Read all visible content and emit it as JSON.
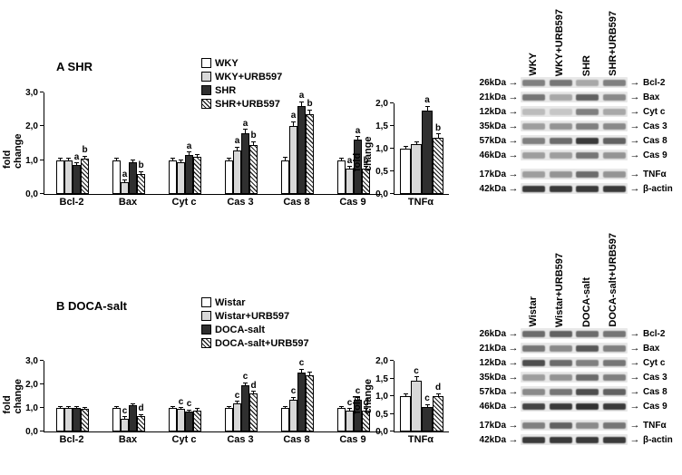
{
  "panels": [
    {
      "id": "A",
      "title": "A SHR",
      "legend": [
        "WKY",
        "WKY+URB597",
        "SHR",
        "SHR+URB597"
      ],
      "blot": {
        "lanes": [
          "WKY",
          "WKY+URB597",
          "SHR",
          "SHR+URB597"
        ],
        "rows": [
          {
            "kda": "26kDa",
            "protein": "Bcl-2",
            "bands": [
              0.5,
              0.55,
              0.3,
              0.5
            ]
          },
          {
            "kda": "21kDa",
            "protein": "Bax",
            "bands": [
              0.55,
              0.3,
              0.65,
              0.45
            ]
          },
          {
            "kda": "12kDa",
            "protein": "Cyt c",
            "bands": [
              0.2,
              0.15,
              0.5,
              0.3
            ]
          },
          {
            "kda": "35kDa",
            "protein": "Cas 3",
            "bands": [
              0.35,
              0.4,
              0.5,
              0.45
            ]
          },
          {
            "kda": "57kDa",
            "protein": "Cas 8",
            "bands": [
              0.5,
              0.6,
              0.85,
              0.65
            ]
          },
          {
            "kda": "46kDa",
            "protein": "Cas 9",
            "bands": [
              0.35,
              0.35,
              0.55,
              0.4
            ]
          },
          {
            "kda": "17kDa",
            "protein": "TNFα",
            "bands": [
              0.35,
              0.4,
              0.6,
              0.4
            ],
            "gap_before": true
          },
          {
            "kda": "42kDa",
            "protein": "β-actin",
            "bands": [
              0.85,
              0.85,
              0.85,
              0.85
            ]
          }
        ]
      }
    },
    {
      "id": "B",
      "title": "B DOCA-salt",
      "legend": [
        "Wistar",
        "Wistar+URB597",
        "DOCA-salt",
        "DOCA-salt+URB597"
      ],
      "blot": {
        "lanes": [
          "Wistar",
          "Wistar+URB597",
          "DOCA-salt",
          "DOCA-salt+URB597"
        ],
        "rows": [
          {
            "kda": "26kDa",
            "protein": "Bcl-2",
            "bands": [
              0.6,
              0.65,
              0.6,
              0.55
            ]
          },
          {
            "kda": "21kDa",
            "protein": "Bax",
            "bands": [
              0.55,
              0.45,
              0.7,
              0.5
            ]
          },
          {
            "kda": "12kDa",
            "protein": "Cyt c",
            "bands": [
              0.75,
              0.6,
              0.5,
              0.55
            ]
          },
          {
            "kda": "35kDa",
            "protein": "Cas 3",
            "bands": [
              0.35,
              0.4,
              0.6,
              0.5
            ]
          },
          {
            "kda": "57kDa",
            "protein": "Cas 8",
            "bands": [
              0.45,
              0.55,
              0.75,
              0.65
            ]
          },
          {
            "kda": "46kDa",
            "protein": "Cas 9",
            "bands": [
              0.8,
              0.85,
              0.9,
              0.85
            ]
          },
          {
            "kda": "17kDa",
            "protein": "TNFα",
            "bands": [
              0.5,
              0.65,
              0.45,
              0.55
            ],
            "gap_before": true
          },
          {
            "kda": "42kDa",
            "protein": "β-actin",
            "bands": [
              0.85,
              0.85,
              0.85,
              0.85
            ]
          }
        ]
      }
    }
  ],
  "chart_data": [
    {
      "id": "A-main",
      "type": "bar",
      "panel": "A",
      "title": "A SHR",
      "xlabel": "",
      "ylabel": "fold change",
      "ylim": [
        0,
        3
      ],
      "grid": false,
      "legend_position": "top-left-of-plot",
      "yticks": [
        {
          "v": 0,
          "label": "0,0"
        },
        {
          "v": 1,
          "label": "1,0"
        },
        {
          "v": 2,
          "label": "2,0"
        },
        {
          "v": 3,
          "label": "3,0"
        }
      ],
      "categories": [
        "Bcl-2",
        "Bax",
        "Cyt c",
        "Cas 3",
        "Cas 8",
        "Cas 9"
      ],
      "series": [
        {
          "name": "WKY",
          "style": 0,
          "values": [
            1.0,
            1.0,
            1.0,
            1.0,
            1.0,
            1.0
          ],
          "err": [
            0.05,
            0.05,
            0.05,
            0.05,
            0.08,
            0.05
          ],
          "sig": [
            null,
            null,
            null,
            null,
            null,
            null
          ]
        },
        {
          "name": "WKY+URB597",
          "style": 1,
          "values": [
            1.0,
            0.35,
            0.95,
            1.3,
            2.0,
            0.75
          ],
          "err": [
            0.05,
            0.05,
            0.05,
            0.08,
            0.12,
            0.05
          ],
          "sig": [
            null,
            "a",
            null,
            "a",
            "a",
            "a"
          ]
        },
        {
          "name": "SHR",
          "style": 2,
          "values": [
            0.85,
            0.95,
            1.15,
            1.8,
            2.6,
            1.6
          ],
          "err": [
            0.05,
            0.05,
            0.08,
            0.1,
            0.12,
            0.08
          ],
          "sig": [
            "a",
            null,
            "a",
            "a",
            "a",
            "a"
          ]
        },
        {
          "name": "SHR+URB597",
          "style": 3,
          "values": [
            1.05,
            0.6,
            1.1,
            1.45,
            2.35,
            0.75
          ],
          "err": [
            0.06,
            0.05,
            0.06,
            0.08,
            0.12,
            0.05
          ],
          "sig": [
            "b",
            "b",
            null,
            "b",
            "b",
            "b"
          ]
        }
      ]
    },
    {
      "id": "A-tnf",
      "type": "bar",
      "panel": "A",
      "title": "",
      "xlabel": "",
      "ylabel": "fold change",
      "ylim": [
        0,
        2
      ],
      "grid": false,
      "yticks": [
        {
          "v": 0,
          "label": "0,0"
        },
        {
          "v": 0.5,
          "label": "0,5"
        },
        {
          "v": 1,
          "label": "1,0"
        },
        {
          "v": 1.5,
          "label": "1,5"
        },
        {
          "v": 2,
          "label": "2,0"
        }
      ],
      "categories": [
        "TNFα"
      ],
      "series": [
        {
          "name": "WKY",
          "style": 0,
          "values": [
            1.0
          ],
          "err": [
            0.05
          ],
          "sig": [
            null
          ]
        },
        {
          "name": "WKY+URB597",
          "style": 1,
          "values": [
            1.1
          ],
          "err": [
            0.05
          ],
          "sig": [
            null
          ]
        },
        {
          "name": "SHR",
          "style": 2,
          "values": [
            1.85
          ],
          "err": [
            0.08
          ],
          "sig": [
            "a"
          ]
        },
        {
          "name": "SHR+URB597",
          "style": 3,
          "values": [
            1.25
          ],
          "err": [
            0.07
          ],
          "sig": [
            "b"
          ]
        }
      ]
    },
    {
      "id": "B-main",
      "type": "bar",
      "panel": "B",
      "title": "B DOCA-salt",
      "xlabel": "",
      "ylabel": "fold change",
      "ylim": [
        0,
        3
      ],
      "grid": false,
      "yticks": [
        {
          "v": 0,
          "label": "0,0"
        },
        {
          "v": 1,
          "label": "1,0"
        },
        {
          "v": 2,
          "label": "2,0"
        },
        {
          "v": 3,
          "label": "3,0"
        }
      ],
      "categories": [
        "Bcl-2",
        "Bax",
        "Cyt c",
        "Cas 3",
        "Cas 8",
        "Cas 9"
      ],
      "series": [
        {
          "name": "Wistar",
          "style": 0,
          "values": [
            1.0,
            1.0,
            1.0,
            1.0,
            1.0,
            1.0
          ],
          "err": [
            0.05,
            0.05,
            0.05,
            0.05,
            0.05,
            0.05
          ],
          "sig": [
            null,
            null,
            null,
            null,
            null,
            null
          ]
        },
        {
          "name": "Wistar+URB597",
          "style": 1,
          "values": [
            1.0,
            0.55,
            0.95,
            1.2,
            1.35,
            0.9
          ],
          "err": [
            0.05,
            0.05,
            0.05,
            0.07,
            0.08,
            0.05
          ],
          "sig": [
            null,
            "c",
            "c",
            "c",
            "c",
            "c"
          ]
        },
        {
          "name": "DOCA-salt",
          "style": 2,
          "values": [
            1.0,
            1.1,
            0.85,
            1.95,
            2.5,
            1.35
          ],
          "err": [
            0.05,
            0.06,
            0.05,
            0.1,
            0.12,
            0.08
          ],
          "sig": [
            null,
            null,
            "c",
            "c",
            "c",
            "c"
          ]
        },
        {
          "name": "DOCA-salt+URB597",
          "style": 3,
          "values": [
            0.95,
            0.65,
            0.9,
            1.6,
            2.4,
            0.9
          ],
          "err": [
            0.05,
            0.05,
            0.05,
            0.08,
            0.12,
            0.05
          ],
          "sig": [
            null,
            "d",
            null,
            "d",
            null,
            "d"
          ]
        }
      ]
    },
    {
      "id": "B-tnf",
      "type": "bar",
      "panel": "B",
      "title": "",
      "xlabel": "",
      "ylabel": "fold change",
      "ylim": [
        0,
        2
      ],
      "grid": false,
      "yticks": [
        {
          "v": 0,
          "label": "0,0"
        },
        {
          "v": 0.5,
          "label": "0,5"
        },
        {
          "v": 1,
          "label": "1,0"
        },
        {
          "v": 1.5,
          "label": "1,5"
        },
        {
          "v": 2,
          "label": "2,0"
        }
      ],
      "categories": [
        "TNFα"
      ],
      "series": [
        {
          "name": "Wistar",
          "style": 0,
          "values": [
            1.0
          ],
          "err": [
            0.05
          ],
          "sig": [
            null
          ]
        },
        {
          "name": "Wistar+URB597",
          "style": 1,
          "values": [
            1.45
          ],
          "err": [
            0.08
          ],
          "sig": [
            "c"
          ]
        },
        {
          "name": "DOCA-salt",
          "style": 2,
          "values": [
            0.7
          ],
          "err": [
            0.05
          ],
          "sig": [
            "c"
          ]
        },
        {
          "name": "DOCA-salt+URB597",
          "style": 3,
          "values": [
            1.0
          ],
          "err": [
            0.06
          ],
          "sig": [
            "d"
          ]
        }
      ]
    }
  ]
}
